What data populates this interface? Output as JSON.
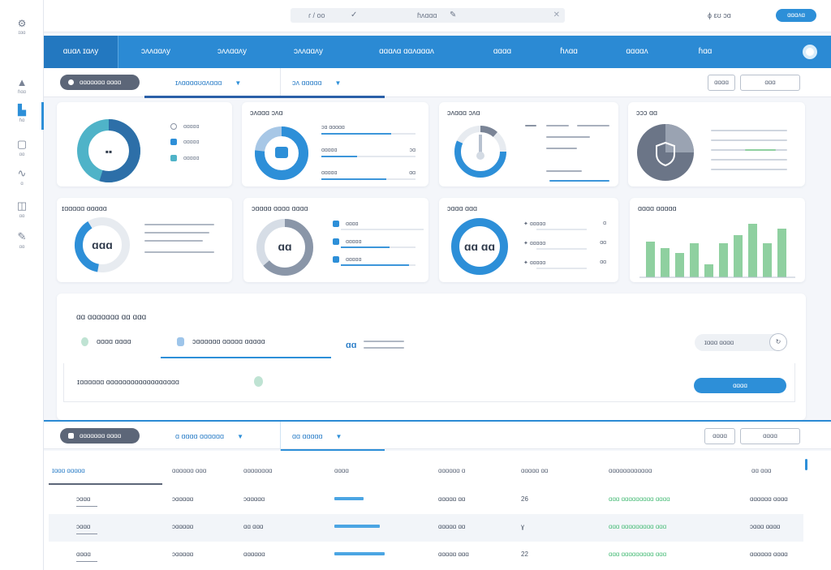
{
  "topbar": {
    "search_left": "ɾ / oo",
    "search_right": "ɦʌɑɑɑ",
    "user_text": "ɸ ɛʊ ɔɑ",
    "top_button": "ɑɑɑʌɑ"
  },
  "sidebar": {
    "logo_label": "ɪɑɑ",
    "items": [
      {
        "label": "ɦɑɑ",
        "icon": "user-icon"
      },
      {
        "label": "ɦɑ",
        "icon": "chart-icon"
      },
      {
        "label": "ɑɑ",
        "icon": "box-icon"
      },
      {
        "label": "ɑ",
        "icon": "link-icon"
      },
      {
        "label": "ɑɑ",
        "icon": "settings-icon"
      },
      {
        "label": "ɑɑ",
        "icon": "edit-icon"
      }
    ]
  },
  "navbar": {
    "items": [
      "ɑuɑʌ ɪɑʌy",
      "ɔʌʌɑɑʌy",
      "ɔʌʌɑɑʌy",
      "ɔʌʌɑɑʌy",
      "ɑɑɑʌɑ ɑɑʌɑɑɑʌ",
      "ɑɑɑɑ",
      "ɦʌɑɑ",
      "ɑɑɑɑʌ",
      "ɦɑɑ"
    ]
  },
  "filter1": {
    "pill": "ɑɑɑɑɑɑɑ ɑɑɑɑ",
    "dd1": "ɪʌɑɑɑɑʊɑʌɑɑɑ",
    "dd2": "ɔʌ ɑɑɑɑɑ",
    "btn1": "ɑɑɑɑ",
    "btn2": "ɑɑɑ"
  },
  "cards": {
    "c1": {
      "center": "ɑɑ",
      "legend": [
        "ɑɑɑɑɑ",
        "ɑɑɑɑɑ",
        "ɑɑɑɑɑ"
      ]
    },
    "c2": {
      "title": "ɔʌɑɑɑ ɔʌɑ",
      "rows": [
        {
          "label": "ɔɑ ɑɑɑɑɑ",
          "value": ""
        },
        {
          "label": "ɑɑɑɑɑ",
          "value": "ɔɑ"
        },
        {
          "label": "ɑɑɑɑɑ",
          "value": "ɑɑ"
        }
      ]
    },
    "c3": {
      "title": "ɔʌɑɑɑ ɔʌɑ"
    },
    "c4": {
      "title": "ɔɔɔ ɑɑ"
    },
    "c5": {
      "title": "ɪɑɑɑɑɑ ɑɑɑɑɑ",
      "center": "ɑɑɑ"
    },
    "c6": {
      "title": "ɔɑɑɑɑ ɑɑɑɑ ɑɑɑɑ",
      "center": "ɑɑ",
      "rows": [
        "ɑɑɑɑ",
        "ɑɑɑɑɑ",
        "ɑɑɑɑɑ"
      ]
    },
    "c7": {
      "title": "ɔɑɑɑ ɑɑɑ",
      "center": "ɑɑ ɑɑ",
      "rows": [
        {
          "label": "ɑɑɑɑɑ",
          "value": "ɑ"
        },
        {
          "label": "ɑɑɑɑɑ",
          "value": "ɑɑ"
        },
        {
          "label": "ɑɑɑɑɑ",
          "value": "ɑɑ"
        }
      ]
    },
    "c8": {
      "title": "ɑɑɑɑ ɑɑɑɑɑ"
    }
  },
  "panel": {
    "title": "ɑɑ ɑɑɑɑɑɑɑ ɑɑ ɑɑɑ",
    "chip1": "ɑɑɑɑ ɑɑɑɑ",
    "chip2": "ɔɑɑɑɑɑɑ ɑɑɑɑɑ ɑɑɑɑɑ",
    "stat": "ɑɑ",
    "gray_pill": "ɪɑɑɑ ɑɑɑɑ",
    "sub_text": "ɪɑɑɑɑɑɑ ɑɑɑɑɑɑɑɑɑɑɑɑɑɑɑɑɑɑ",
    "blue_btn": "ɑɑɑɑ"
  },
  "filter2": {
    "pill": "ɑɑɑɑɑɑɑ ɑɑɑɑ",
    "dd1": "ɑ ɑɑɑɑ ɑɑɑɑɑɑ",
    "dd2": "ɑɑ ɑɑɑɑɑ",
    "btn1": "ɑɑɑɑ",
    "btn2": "ɑɑɑɑ"
  },
  "table": {
    "headers": [
      "ɪɑɑɑ ɑɑɑɑɑ",
      "ɑɑɑɑɑɑ ɑɑɑ",
      "ɑɑɑɑɑɑɑɑ",
      "ɑɑɑɑ",
      "ɑɑɑɑɑɑ ɑ",
      "ɑɑɑɑɑ ɑɑ",
      "ɑɑɑɑɑɑɑɑɑɑɑɑ",
      "ɑɑ ɑɑɑ"
    ],
    "rows": [
      {
        "c1": "ɔɑɑɑ",
        "c2": "ɔɑɑɑɑɑ",
        "c3": "ɔɑɑɑɑɑ",
        "c5": "ɑɑɑɑɑ ɑɑ",
        "c6": "26",
        "c7": "ɑɑɑ ɑɑɑɑɑɑɑɑɑ",
        "c7b": "ɑɑɑɑ",
        "c8": "ɑɑɑɑɑɑ ɑɑɑɑ"
      },
      {
        "c1": "ɔɑɑɑ",
        "c2": "ɔɑɑɑɑɑ",
        "c3": "ɑɑ ɑɑɑ",
        "c5": "ɑɑɑɑɑ ɑɑ",
        "c6": "ɣ",
        "c7": "ɑɑɑ ɑɑɑɑɑɑɑɑɑ",
        "c7b": "ɑɑɑ",
        "c8": "ɔɑɑɑ ɑɑɑɑ"
      },
      {
        "c1": "ɑɑɑɑ",
        "c2": "ɔɑɑɑɑɑ",
        "c3": "ɑɑɑɑɑɑ",
        "c5": "ɑɑɑɑɑ ɑɑɑ",
        "c6": "22",
        "c7": "ɑɑɑ ɑɑɑɑɑɑɑɑɑ",
        "c7b": "ɑɑɑ",
        "c8": "ɑɑɑɑɑɑ ɑɑɑɑ"
      }
    ]
  },
  "colors": {
    "accent": "#2b8ad4",
    "ring_teal": "#4fb3c8",
    "ring_dark": "#2d6fa8",
    "bar_green": "#8fd0a0",
    "gray_ring": "#b7c1cf"
  }
}
